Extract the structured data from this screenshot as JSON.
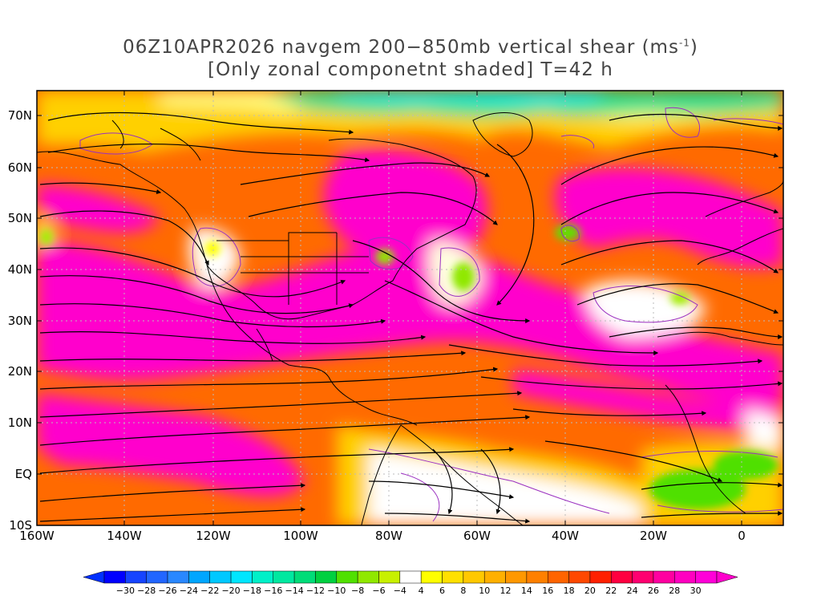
{
  "title": {
    "line1_prefix": "06Z10APR2026 navgem 200−850mb vertical shear (ms",
    "line1_sup": "-1",
    "line1_suffix": ")",
    "line2": "[Only zonal componetnt shaded] T=42 h"
  },
  "lat_labels": [
    "70N",
    "60N",
    "50N",
    "40N",
    "30N",
    "20N",
    "10N",
    "EQ",
    "10S"
  ],
  "lon_labels": [
    "160W",
    "140W",
    "120W",
    "100W",
    "80W",
    "60W",
    "40W",
    "20W",
    "0"
  ],
  "colorbar": {
    "labels": [
      "-30",
      "-28",
      "-26",
      "-24",
      "-22",
      "-20",
      "-18",
      "-16",
      "-14",
      "-12",
      "-10",
      "-8",
      "-6",
      "-4",
      "4",
      "6",
      "8",
      "10",
      "12",
      "14",
      "16",
      "18",
      "20",
      "22",
      "24",
      "26",
      "28",
      "30"
    ],
    "colors": [
      "#0000ff",
      "#1644ff",
      "#2266ff",
      "#2a88ff",
      "#00a6ff",
      "#00c8ff",
      "#00e6ff",
      "#00f0c8",
      "#00e8a0",
      "#00dc78",
      "#00d040",
      "#50e000",
      "#90e800",
      "#c8f000",
      "#ffffff",
      "#ffff00",
      "#ffe000",
      "#ffc800",
      "#ffb000",
      "#ff9800",
      "#ff8000",
      "#ff6400",
      "#ff4800",
      "#ff2000",
      "#ff0040",
      "#ff0070",
      "#ff00a0",
      "#ff00c0",
      "#ff00d8"
    ],
    "below_color": "#0030ff",
    "above_color": "#ff00cc"
  }
}
